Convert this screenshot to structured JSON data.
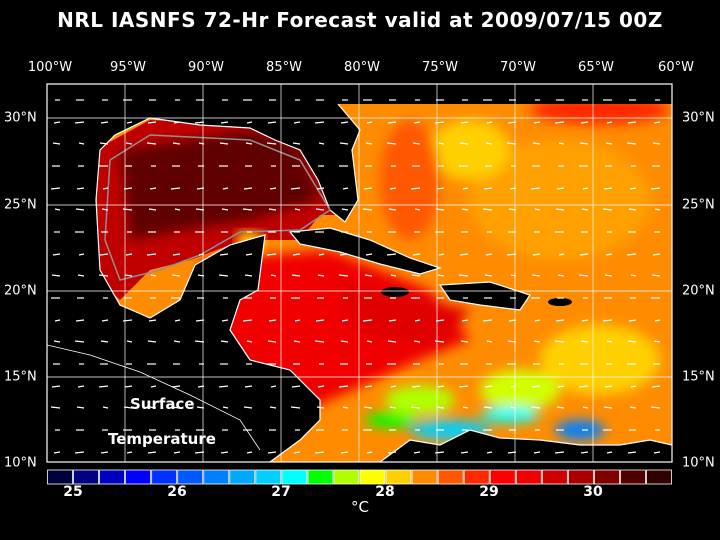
{
  "title": "NRL IASNFS  72-Hr Forecast valid at 2009/07/15 00Z",
  "map": {
    "variable_label_line1": "Surface",
    "variable_label_line2": "Temperature",
    "longitude_labels": [
      "100°W",
      "95°W",
      "90°W",
      "85°W",
      "80°W",
      "75°W",
      "70°W",
      "65°W",
      "60°W"
    ],
    "latitude_labels_left": [
      "30°N",
      "25°N",
      "20°N",
      "15°N",
      "10°N"
    ],
    "latitude_labels_right": [
      "30°N",
      "25°N",
      "20°N",
      "15°N",
      "10°N"
    ],
    "extent": {
      "lon_min": -100,
      "lon_max": -60,
      "lat_min": 10,
      "lat_max": 32
    },
    "land_color": "#000000",
    "gridline_color": "#ffffff",
    "wind_vector_color": "#ffffff",
    "bathymetry_contour_color": "#909090"
  },
  "colorbar": {
    "tick_labels": [
      "25",
      "26",
      "27",
      "28",
      "29",
      "30"
    ],
    "unit": "°C",
    "range": [
      24.75,
      30.75
    ],
    "step": 0.25,
    "colors": [
      "#00003a",
      "#000080",
      "#0000c0",
      "#0000ff",
      "#0030ff",
      "#0058ff",
      "#0080ff",
      "#00a8ff",
      "#00d0ff",
      "#00ffff",
      "#00ff00",
      "#b0ff00",
      "#ffff00",
      "#ffd000",
      "#ff8c00",
      "#ff5800",
      "#ff2800",
      "#ff0000",
      "#f00000",
      "#d00000",
      "#a80000",
      "#800000",
      "#500000",
      "#300000"
    ]
  }
}
